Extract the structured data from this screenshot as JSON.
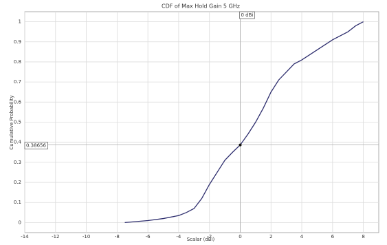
{
  "chart_data": {
    "type": "line",
    "title": "CDF of Max Hold Gain 5 GHz",
    "x_label": "Scalar (dBi)",
    "y_label": "Cumulative Probability",
    "x": [
      -7.5,
      -6,
      -5,
      -4,
      -3.5,
      -3,
      -2.5,
      -2,
      -1.5,
      -1,
      -0.5,
      0,
      0.5,
      1,
      1.5,
      2,
      2.5,
      3,
      3.5,
      4,
      5,
      6,
      7,
      7.5,
      8
    ],
    "series": [
      {
        "name": "CDF",
        "color": "#2e2e6e",
        "values": [
          0,
          0.01,
          0.02,
          0.035,
          0.05,
          0.07,
          0.12,
          0.19,
          0.25,
          0.31,
          0.35,
          0.38656,
          0.44,
          0.5,
          0.57,
          0.65,
          0.71,
          0.75,
          0.79,
          0.81,
          0.86,
          0.91,
          0.95,
          0.98,
          1
        ]
      }
    ],
    "xlim": [
      -14,
      9
    ],
    "ylim": [
      -0.05,
      1.05
    ],
    "xticks": [
      -14,
      -12,
      -10,
      -8,
      -6,
      -4,
      -2,
      0,
      2,
      4,
      6,
      8
    ],
    "yticks": [
      0,
      0.1,
      0.2,
      0.3,
      0.4,
      0.5,
      0.6,
      0.7,
      0.8,
      0.9,
      1
    ],
    "grid": true,
    "marker": {
      "x": 0,
      "y": 0.38656,
      "x_label": "0 dBi"
    }
  }
}
